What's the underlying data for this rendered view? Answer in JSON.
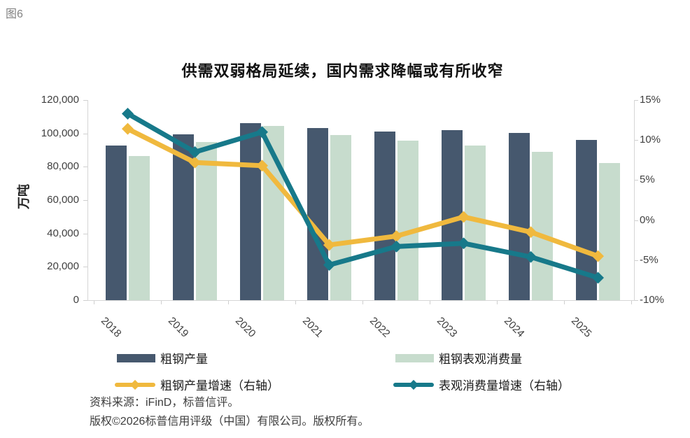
{
  "figure_label": "图6",
  "chart_data": {
    "type": "combo",
    "title": "供需双弱格局延续，国内需求降幅或有所收窄",
    "categories": [
      "2018",
      "2019",
      "2020",
      "2021",
      "2022",
      "2023",
      "2024",
      "2025"
    ],
    "series": [
      {
        "name": "粗钢产量",
        "chart_type": "bar",
        "axis": "left",
        "color": "#46586e",
        "values": [
          92800,
          99600,
          106000,
          103200,
          101300,
          101900,
          100400,
          96000
        ]
      },
      {
        "name": "粗钢表观消费量",
        "chart_type": "bar",
        "axis": "left",
        "color": "#c7dccd",
        "values": [
          86400,
          94900,
          104300,
          99000,
          95700,
          92900,
          88800,
          82200
        ]
      },
      {
        "name": "粗钢产量增速（右轴）",
        "chart_type": "line",
        "axis": "right",
        "color": "#f0b93e",
        "values": [
          11.4,
          7.2,
          6.8,
          -3.1,
          -2.0,
          0.4,
          -1.5,
          -4.5
        ]
      },
      {
        "name": "表观消费量增速（右轴）",
        "chart_type": "line",
        "axis": "right",
        "color": "#17798a",
        "values": [
          13.3,
          8.5,
          11.0,
          -5.6,
          -3.3,
          -2.9,
          -4.6,
          -7.2
        ]
      }
    ],
    "left_axis": {
      "title": "万吨",
      "ylim": [
        0,
        120000
      ],
      "ticks": [
        {
          "label": "0",
          "value": 0
        },
        {
          "label": "20,000",
          "value": 20000
        },
        {
          "label": "40,000",
          "value": 40000
        },
        {
          "label": "60,000",
          "value": 60000
        },
        {
          "label": "80,000",
          "value": 80000
        },
        {
          "label": "100,000",
          "value": 100000
        },
        {
          "label": "120,000",
          "value": 120000
        }
      ]
    },
    "right_axis": {
      "ylim": [
        -10,
        15
      ],
      "ticks": [
        {
          "label": "-10%",
          "value": -10
        },
        {
          "label": "-5%",
          "value": -5
        },
        {
          "label": "0%",
          "value": 0
        },
        {
          "label": "5%",
          "value": 5
        },
        {
          "label": "10%",
          "value": 10
        },
        {
          "label": "15%",
          "value": 15
        }
      ]
    },
    "grid": false,
    "legend_position": "bottom"
  },
  "footer": {
    "source": "资料来源：iFinD，标普信评。",
    "copyright": "版权©2026标普信用评级（中国）有限公司。版权所有。"
  }
}
